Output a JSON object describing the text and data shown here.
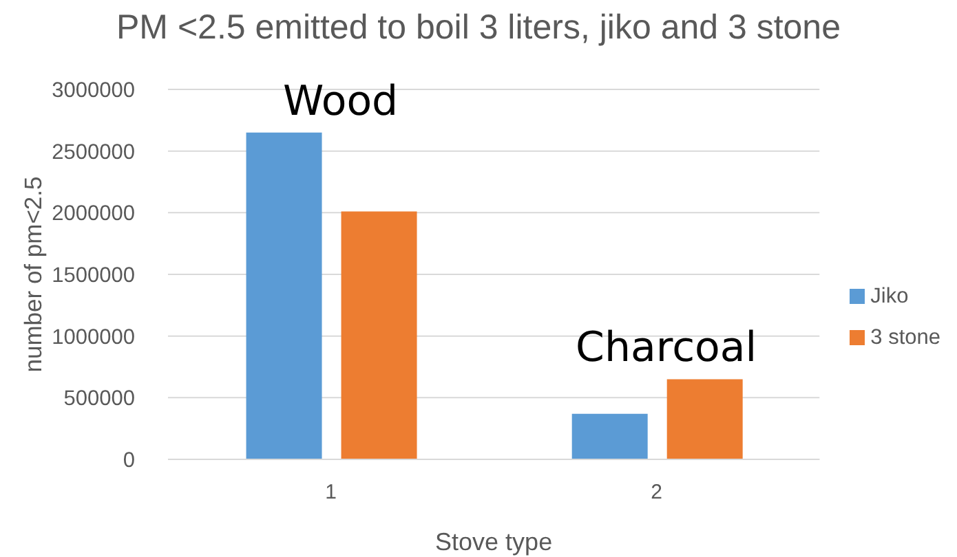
{
  "chart_data": {
    "type": "bar",
    "title": "PM <2.5 emitted to boil 3 liters, jiko and 3 stone",
    "xlabel": "Stove type",
    "ylabel": "number of pm<2.5",
    "categories": [
      "1",
      "2"
    ],
    "series": [
      {
        "name": "Jiko",
        "color": "#5b9bd5",
        "values": [
          2650000,
          370000
        ]
      },
      {
        "name": "3 stone",
        "color": "#ed7d31",
        "values": [
          2010000,
          650000
        ]
      }
    ],
    "ylim": [
      0,
      3000000
    ],
    "yticks": [
      0,
      500000,
      1000000,
      1500000,
      2000000,
      2500000,
      3000000
    ],
    "grid": "y",
    "legend": "right",
    "annotations": [
      "Wood",
      "Charcoal"
    ]
  }
}
